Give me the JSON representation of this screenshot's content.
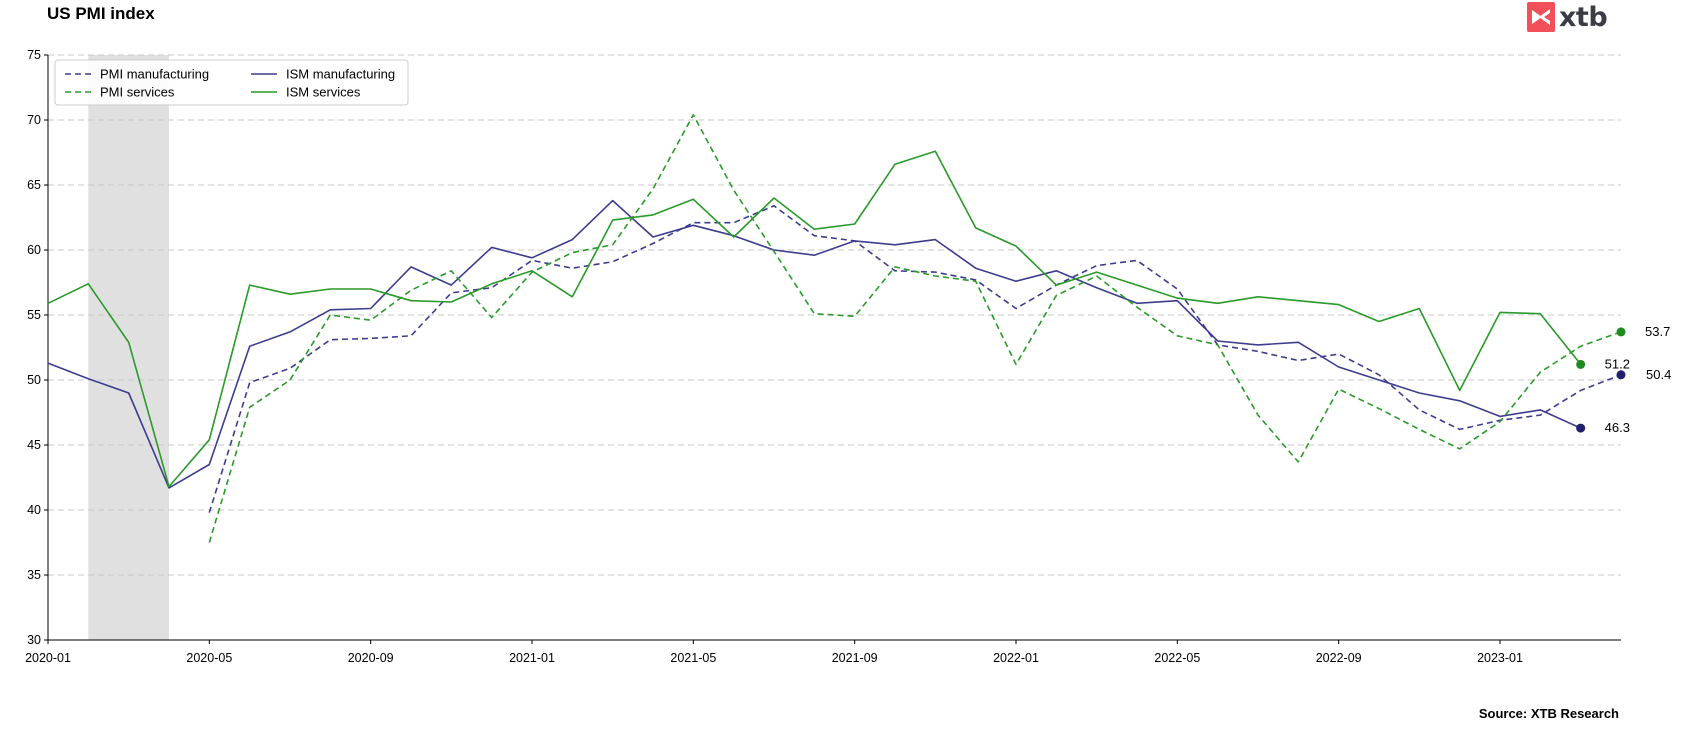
{
  "header": {
    "title": "US PMI index",
    "logo_text": "xtb",
    "source": "Source: XTB Research"
  },
  "chart_data": {
    "type": "line",
    "title": "US PMI index",
    "xlabel": "",
    "ylabel": "",
    "ylim": [
      30,
      75
    ],
    "yticks": [
      30,
      35,
      40,
      45,
      50,
      55,
      60,
      65,
      70,
      75
    ],
    "xlim": [
      "2020-01",
      "2023-04"
    ],
    "xticks": [
      "2020-01",
      "2020-05",
      "2020-09",
      "2021-01",
      "2021-05",
      "2021-09",
      "2022-01",
      "2022-05",
      "2022-09",
      "2023-01"
    ],
    "grid": "horizontal dashed",
    "legend_position": "top-left",
    "recession_shading": {
      "from": "2020-02",
      "to": "2020-04",
      "color": "#e0e0e0"
    },
    "x": [
      "2020-01",
      "2020-02",
      "2020-03",
      "2020-04",
      "2020-05",
      "2020-06",
      "2020-07",
      "2020-08",
      "2020-09",
      "2020-10",
      "2020-11",
      "2020-12",
      "2021-01",
      "2021-02",
      "2021-03",
      "2021-04",
      "2021-05",
      "2021-06",
      "2021-07",
      "2021-08",
      "2021-09",
      "2021-10",
      "2021-11",
      "2021-12",
      "2022-01",
      "2022-02",
      "2022-03",
      "2022-04",
      "2022-05",
      "2022-06",
      "2022-07",
      "2022-08",
      "2022-09",
      "2022-10",
      "2022-11",
      "2022-12",
      "2023-01",
      "2023-02",
      "2023-03",
      "2023-04"
    ],
    "series": [
      {
        "name": "PMI manufacturing",
        "color": "#3d3d8f",
        "style": "dashed",
        "values": [
          null,
          null,
          null,
          null,
          39.8,
          49.8,
          50.9,
          53.1,
          53.2,
          53.4,
          56.7,
          57.1,
          59.2,
          58.6,
          59.1,
          60.5,
          62.1,
          62.1,
          63.4,
          61.1,
          60.7,
          58.4,
          58.3,
          57.7,
          55.5,
          57.3,
          58.8,
          59.2,
          57.0,
          52.7,
          52.2,
          51.5,
          52.0,
          50.4,
          47.7,
          46.2,
          46.9,
          47.3,
          49.2,
          50.4
        ],
        "end_label": "50.4"
      },
      {
        "name": "ISM manufacturing",
        "color": "#3d3d8f",
        "style": "solid",
        "values": [
          51.3,
          50.1,
          49.0,
          41.7,
          43.5,
          52.6,
          53.7,
          55.4,
          55.5,
          58.7,
          57.3,
          60.2,
          59.4,
          60.8,
          63.8,
          61.0,
          61.9,
          61.1,
          60.0,
          59.6,
          60.7,
          60.4,
          60.8,
          58.6,
          57.6,
          58.4,
          57.1,
          55.9,
          56.1,
          53.0,
          52.7,
          52.9,
          51.0,
          50.0,
          49.0,
          48.4,
          47.2,
          47.7,
          46.3,
          null
        ],
        "end_label": "46.3"
      },
      {
        "name": "PMI services",
        "color": "#2a9a2a",
        "style": "dashed",
        "values": [
          null,
          null,
          null,
          null,
          37.5,
          47.9,
          50.0,
          55.0,
          54.6,
          56.9,
          58.4,
          54.8,
          58.3,
          59.8,
          60.4,
          64.7,
          70.4,
          64.6,
          59.9,
          55.1,
          54.9,
          58.7,
          58.0,
          57.6,
          51.2,
          56.5,
          58.0,
          55.6,
          53.4,
          52.7,
          47.3,
          43.7,
          49.3,
          47.8,
          46.2,
          44.7,
          46.8,
          50.6,
          52.6,
          53.7
        ],
        "end_label": "53.7"
      },
      {
        "name": "ISM services",
        "color": "#2a9a2a",
        "style": "solid",
        "values": [
          55.9,
          57.4,
          52.9,
          41.8,
          45.4,
          57.3,
          56.6,
          57.0,
          57.0,
          56.1,
          56.0,
          57.4,
          58.4,
          56.4,
          62.3,
          62.7,
          63.9,
          61.0,
          64.0,
          61.6,
          62.0,
          66.6,
          67.6,
          61.7,
          60.3,
          57.3,
          58.3,
          57.3,
          56.3,
          55.9,
          56.4,
          56.1,
          55.8,
          54.5,
          55.5,
          49.2,
          55.2,
          55.1,
          51.2,
          null
        ],
        "end_label": "51.2"
      }
    ]
  }
}
